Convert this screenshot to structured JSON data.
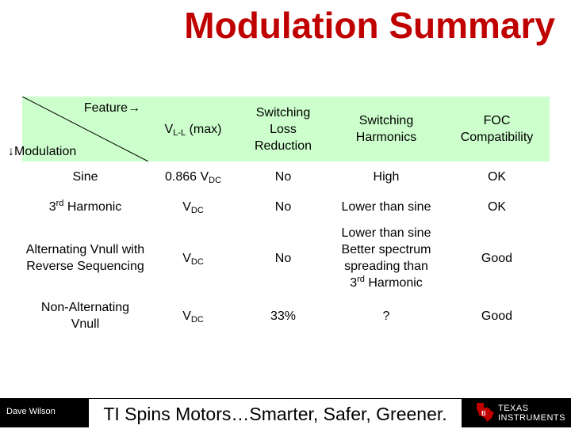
{
  "title": "Modulation Summary",
  "table": {
    "corner_feature": "Feature→",
    "corner_modulation": "↓Modulation",
    "headers": {
      "vll_main": "V",
      "vll_sub": "L-L",
      "vll_suffix": " (max)",
      "switching_loss": "Switching Loss Reduction",
      "switching_harmonics": "Switching Harmonics",
      "foc": "FOC Compatibility"
    },
    "rows": [
      {
        "modulation": "Sine",
        "v_main": "0.866 V",
        "v_sub": "DC",
        "loss": "No",
        "harmonics": "High",
        "foc": "OK"
      },
      {
        "modulation_pre": "3",
        "modulation_sup": "rd",
        "modulation_post": " Harmonic",
        "v_main": "V",
        "v_sub": "DC",
        "loss": "No",
        "harmonics": "Lower than sine",
        "foc": "OK"
      },
      {
        "modulation": "Alternating Vnull with Reverse Sequencing",
        "v_main": "V",
        "v_sub": "DC",
        "loss": "No",
        "harmonics_line1": "Lower than sine",
        "harmonics_line2": "Better spectrum spreading than",
        "harmonics_pre": "3",
        "harmonics_sup": "rd",
        "harmonics_post": " Harmonic",
        "foc": "Good"
      },
      {
        "modulation": "Non-Alternating Vnull",
        "v_main": "V",
        "v_sub": "DC",
        "loss": "33%",
        "harmonics": "?",
        "foc": "Good"
      }
    ]
  },
  "footer": {
    "author": "Dave Wilson",
    "tagline": "TI Spins Motors…Smarter, Safer, Greener.",
    "logo_line1": "TEXAS",
    "logo_line2": "INSTRUMENTS"
  },
  "colors": {
    "title": "#c00000",
    "header_bg": "#ccffcc",
    "footer_bg": "#000000"
  }
}
